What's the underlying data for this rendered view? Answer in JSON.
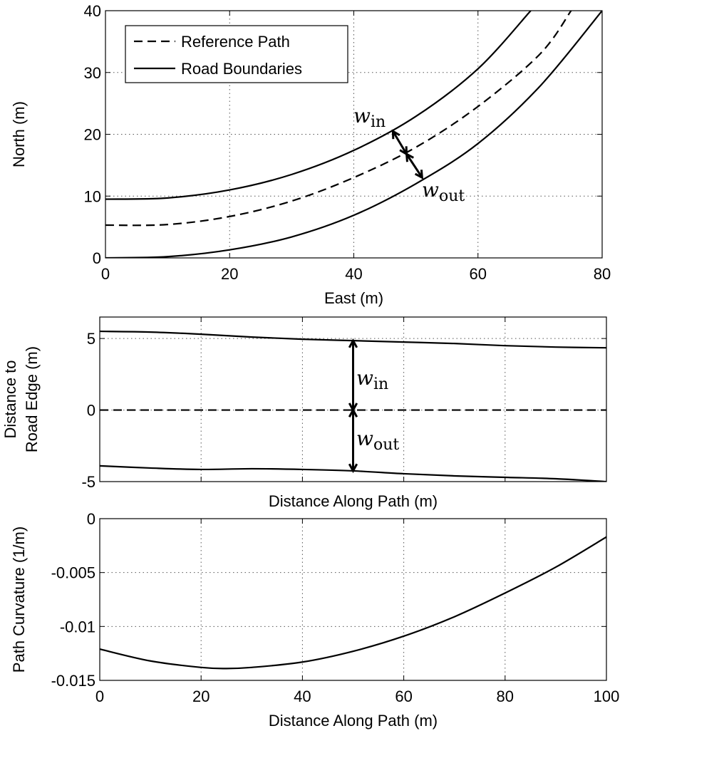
{
  "chart_data": [
    {
      "id": "plan",
      "type": "line",
      "xlabel": "East (m)",
      "ylabel": "North (m)",
      "xlim": [
        0,
        80
      ],
      "ylim": [
        0,
        40
      ],
      "xticks": [
        0,
        20,
        40,
        60,
        80
      ],
      "yticks": [
        0,
        10,
        20,
        30,
        40
      ],
      "grid": true,
      "legend": {
        "placement": "top-left",
        "entries": [
          {
            "label": "Reference Path",
            "style": "dashed"
          },
          {
            "label": "Road Boundaries",
            "style": "solid"
          }
        ]
      },
      "series": [
        {
          "name": "Reference Path",
          "style": "dashed",
          "x": [
            0,
            10,
            20,
            30,
            40,
            50,
            60,
            70,
            75
          ],
          "y": [
            5.3,
            5.4,
            6.7,
            9.2,
            13.0,
            17.9,
            24.5,
            33.0,
            40.0
          ]
        },
        {
          "name": "Road Boundaries",
          "style": "solid",
          "x": [
            0,
            10,
            20,
            30,
            40,
            50,
            60,
            68.5
          ],
          "y": [
            9.5,
            9.7,
            11.0,
            13.5,
            17.4,
            22.9,
            30.6,
            40.0
          ]
        },
        {
          "name": "Road Boundaries",
          "style": "solid",
          "x": [
            0,
            10,
            20,
            30,
            40,
            50,
            60,
            70,
            80
          ],
          "y": [
            0.0,
            0.2,
            1.3,
            3.4,
            6.9,
            12.0,
            18.5,
            27.8,
            40.0
          ]
        }
      ],
      "annotations": [
        {
          "label": "w",
          "sub": "in",
          "x1": 46.3,
          "y1": 20.5,
          "x2": 48.5,
          "y2": 16.8
        },
        {
          "label": "w",
          "sub": "out",
          "x1": 48.5,
          "y1": 16.8,
          "x2": 51.0,
          "y2": 13.0
        }
      ]
    },
    {
      "id": "distance",
      "type": "line",
      "xlabel": "Distance Along Path (m)",
      "ylabel": [
        "Distance to",
        "Road Edge (m)"
      ],
      "xlim": [
        0,
        100
      ],
      "ylim": [
        -5,
        6.5
      ],
      "xticks": [
        0,
        20,
        40,
        60,
        80,
        100
      ],
      "yticks": [
        5,
        0,
        -5
      ],
      "show_xtick_labels": false,
      "grid": true,
      "series": [
        {
          "style": "solid",
          "x": [
            0,
            10,
            20,
            30,
            40,
            50,
            60,
            70,
            80,
            90,
            100
          ],
          "y": [
            5.5,
            5.45,
            5.3,
            5.1,
            4.95,
            4.85,
            4.75,
            4.65,
            4.5,
            4.4,
            4.35
          ]
        },
        {
          "style": "dashed",
          "x": [
            0,
            100
          ],
          "y": [
            0,
            0
          ]
        },
        {
          "style": "solid",
          "x": [
            0,
            10,
            20,
            30,
            40,
            50,
            60,
            70,
            80,
            90,
            100
          ],
          "y": [
            -3.9,
            -4.05,
            -4.15,
            -4.1,
            -4.15,
            -4.25,
            -4.45,
            -4.6,
            -4.7,
            -4.8,
            -5.0
          ]
        }
      ],
      "annotations": [
        {
          "label": "w",
          "sub": "in",
          "x1": 50,
          "y1": 4.85,
          "x2": 50,
          "y2": 0
        },
        {
          "label": "w",
          "sub": "out",
          "x1": 50,
          "y1": 0,
          "x2": 50,
          "y2": -4.25
        }
      ]
    },
    {
      "id": "curvature",
      "type": "line",
      "xlabel": "Distance Along Path (m)",
      "ylabel": "Path Curvature (1/m)",
      "xlim": [
        0,
        100
      ],
      "ylim": [
        -0.015,
        0
      ],
      "xticks": [
        0,
        20,
        40,
        60,
        80,
        100
      ],
      "yticks": [
        0,
        -0.005,
        -0.01,
        -0.015
      ],
      "grid": true,
      "series": [
        {
          "style": "solid",
          "x": [
            0,
            10,
            20,
            25,
            30,
            40,
            50,
            60,
            70,
            80,
            90,
            100
          ],
          "y": [
            -0.0121,
            -0.0132,
            -0.0138,
            -0.0139,
            -0.0138,
            -0.0133,
            -0.0123,
            -0.0109,
            -0.0091,
            -0.0069,
            -0.0045,
            -0.0017
          ]
        }
      ]
    }
  ]
}
